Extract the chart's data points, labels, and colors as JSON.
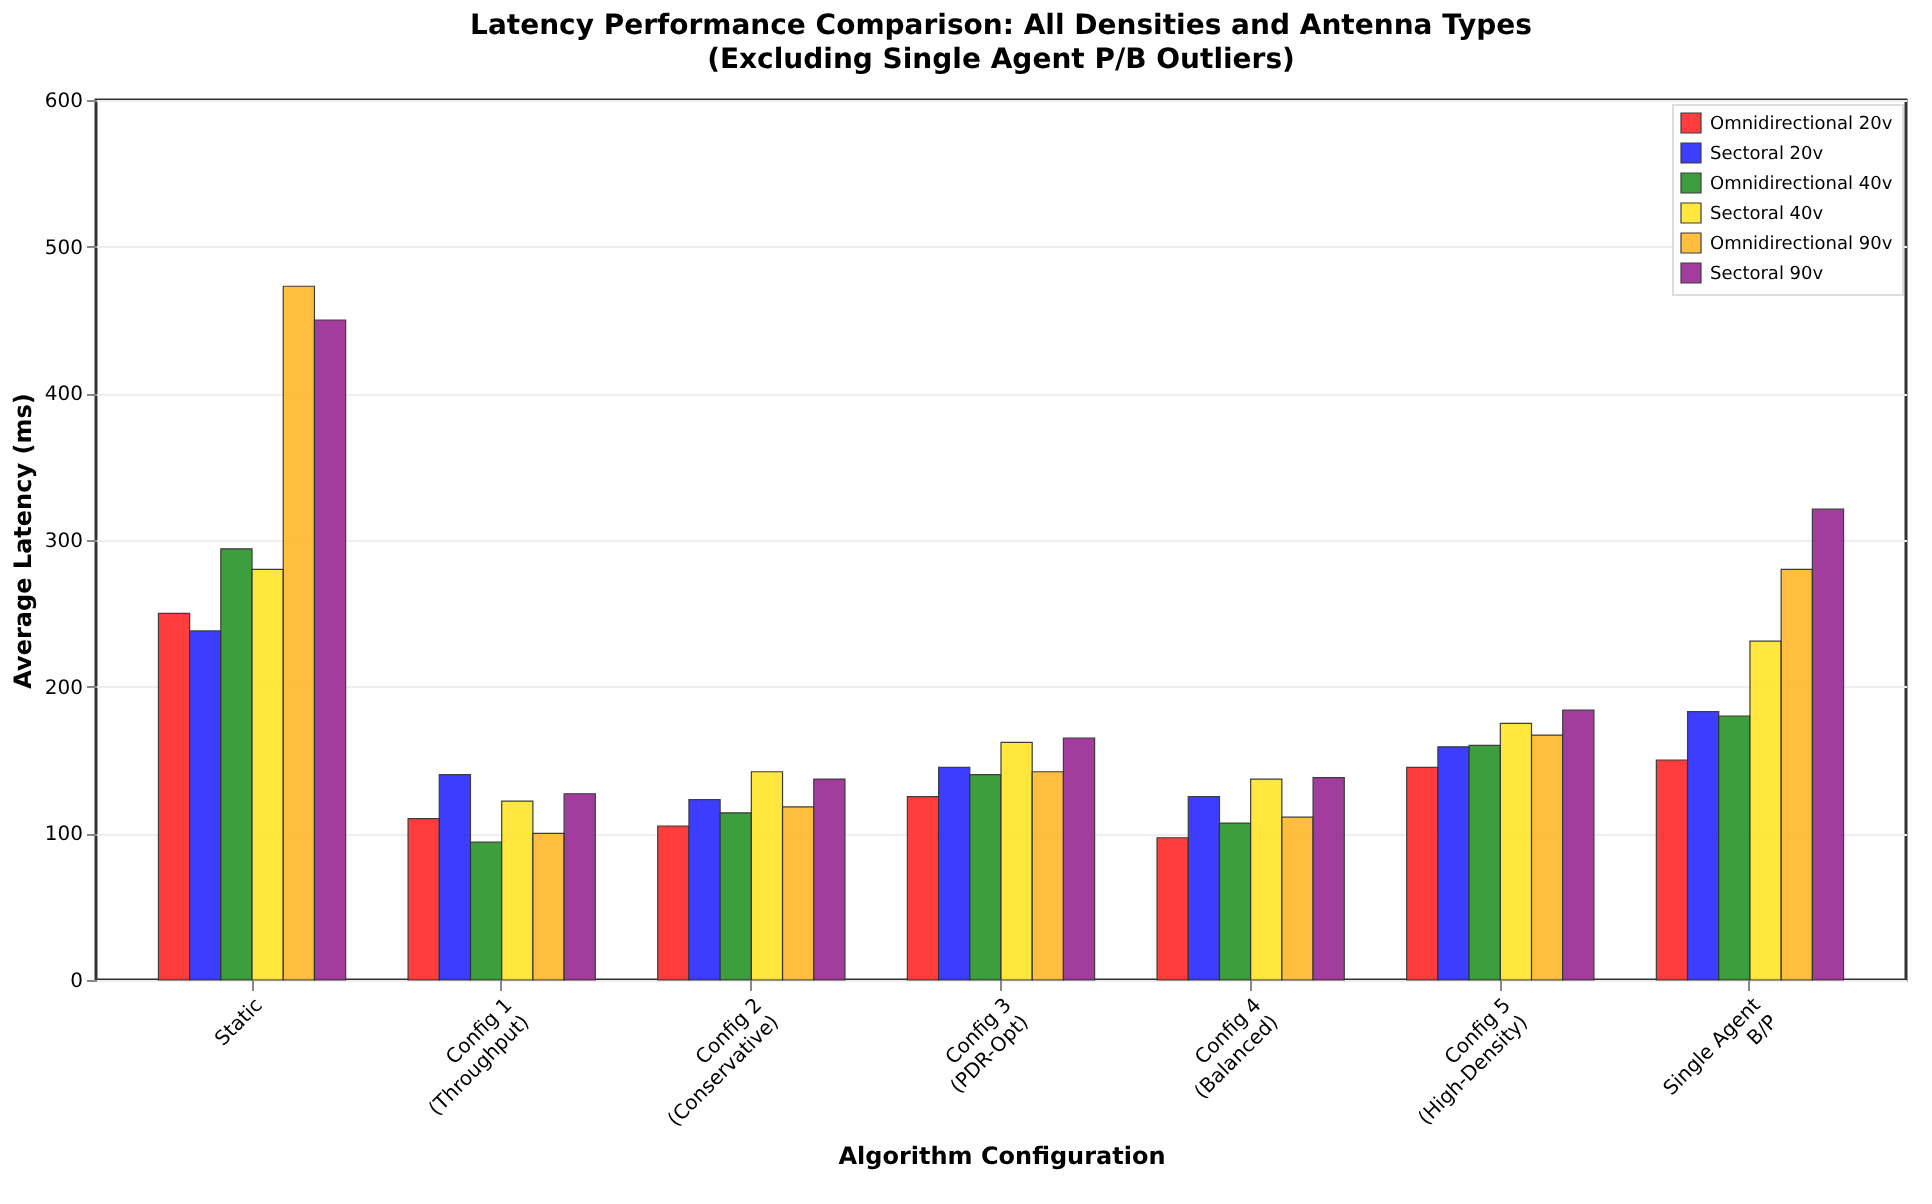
{
  "chart_data": {
    "type": "bar",
    "title": "Latency Performance Comparison: All Densities and Antenna Types",
    "subtitle": "(Excluding Single Agent P/B Outliers)",
    "xlabel": "Algorithm Configuration",
    "ylabel": "Average Latency (ms)",
    "categories": [
      "Static",
      "Config 1\n(Throughput)",
      "Config 2\n(Conservative)",
      "Config 3\n(PDR-Opt)",
      "Config 4\n(Balanced)",
      "Config 5\n(High-Density)",
      "Single Agent\nB/P"
    ],
    "series": [
      {
        "name": "Omnidirectional 20v",
        "color": "#ff3333",
        "values": [
          250,
          110,
          105,
          125,
          97,
          145,
          150
        ]
      },
      {
        "name": "Sectoral 20v",
        "color": "#3333ff",
        "values": [
          238,
          140,
          123,
          145,
          125,
          159,
          183
        ]
      },
      {
        "name": "Omnidirectional 40v",
        "color": "#339933",
        "values": [
          294,
          94,
          114,
          140,
          107,
          160,
          180
        ]
      },
      {
        "name": "Sectoral 40v",
        "color": "#ffe633",
        "values": [
          280,
          122,
          142,
          162,
          137,
          175,
          231
        ]
      },
      {
        "name": "Omnidirectional 90v",
        "color": "#ffbb33",
        "values": [
          473,
          100,
          118,
          142,
          111,
          167,
          280
        ]
      },
      {
        "name": "Sectoral 90v",
        "color": "#9e3399",
        "values": [
          450,
          127,
          137,
          165,
          138,
          184,
          321
        ]
      }
    ],
    "ylim": [
      0,
      600
    ],
    "yticks": [
      0,
      100,
      200,
      300,
      400,
      500,
      600
    ],
    "grid": "y",
    "legend": "top right"
  }
}
